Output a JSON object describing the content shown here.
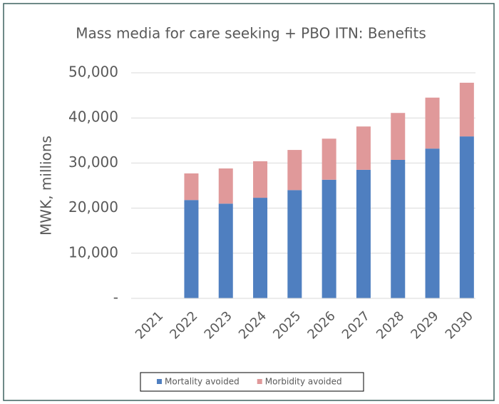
{
  "chart_data": {
    "type": "stacked-bar",
    "title": "Mass media for care seeking + PBO ITN: Benefits",
    "y_label": "MWK, millions",
    "categories": [
      "2021",
      "2022",
      "2023",
      "2024",
      "2025",
      "2026",
      "2027",
      "2028",
      "2029",
      "2030"
    ],
    "series": [
      {
        "name": "Mortality avoided",
        "color": "#4f7fc0",
        "values": [
          null,
          21800,
          21000,
          22300,
          24000,
          26300,
          28500,
          30700,
          33200,
          35900
        ]
      },
      {
        "name": "Morbidity avoided",
        "color": "#e0999a",
        "values": [
          null,
          5900,
          7800,
          8100,
          8900,
          9100,
          9600,
          10400,
          11300,
          11900
        ]
      }
    ],
    "ylim": [
      0,
      50000
    ],
    "yticks": [
      {
        "value": 0,
        "label": "-"
      },
      {
        "value": 10000,
        "label": "10,000"
      },
      {
        "value": 20000,
        "label": "20,000"
      },
      {
        "value": 30000,
        "label": "30,000"
      },
      {
        "value": 40000,
        "label": "40,000"
      },
      {
        "value": 50000,
        "label": "50,000"
      }
    ],
    "grid": true,
    "legend": "bottom"
  }
}
